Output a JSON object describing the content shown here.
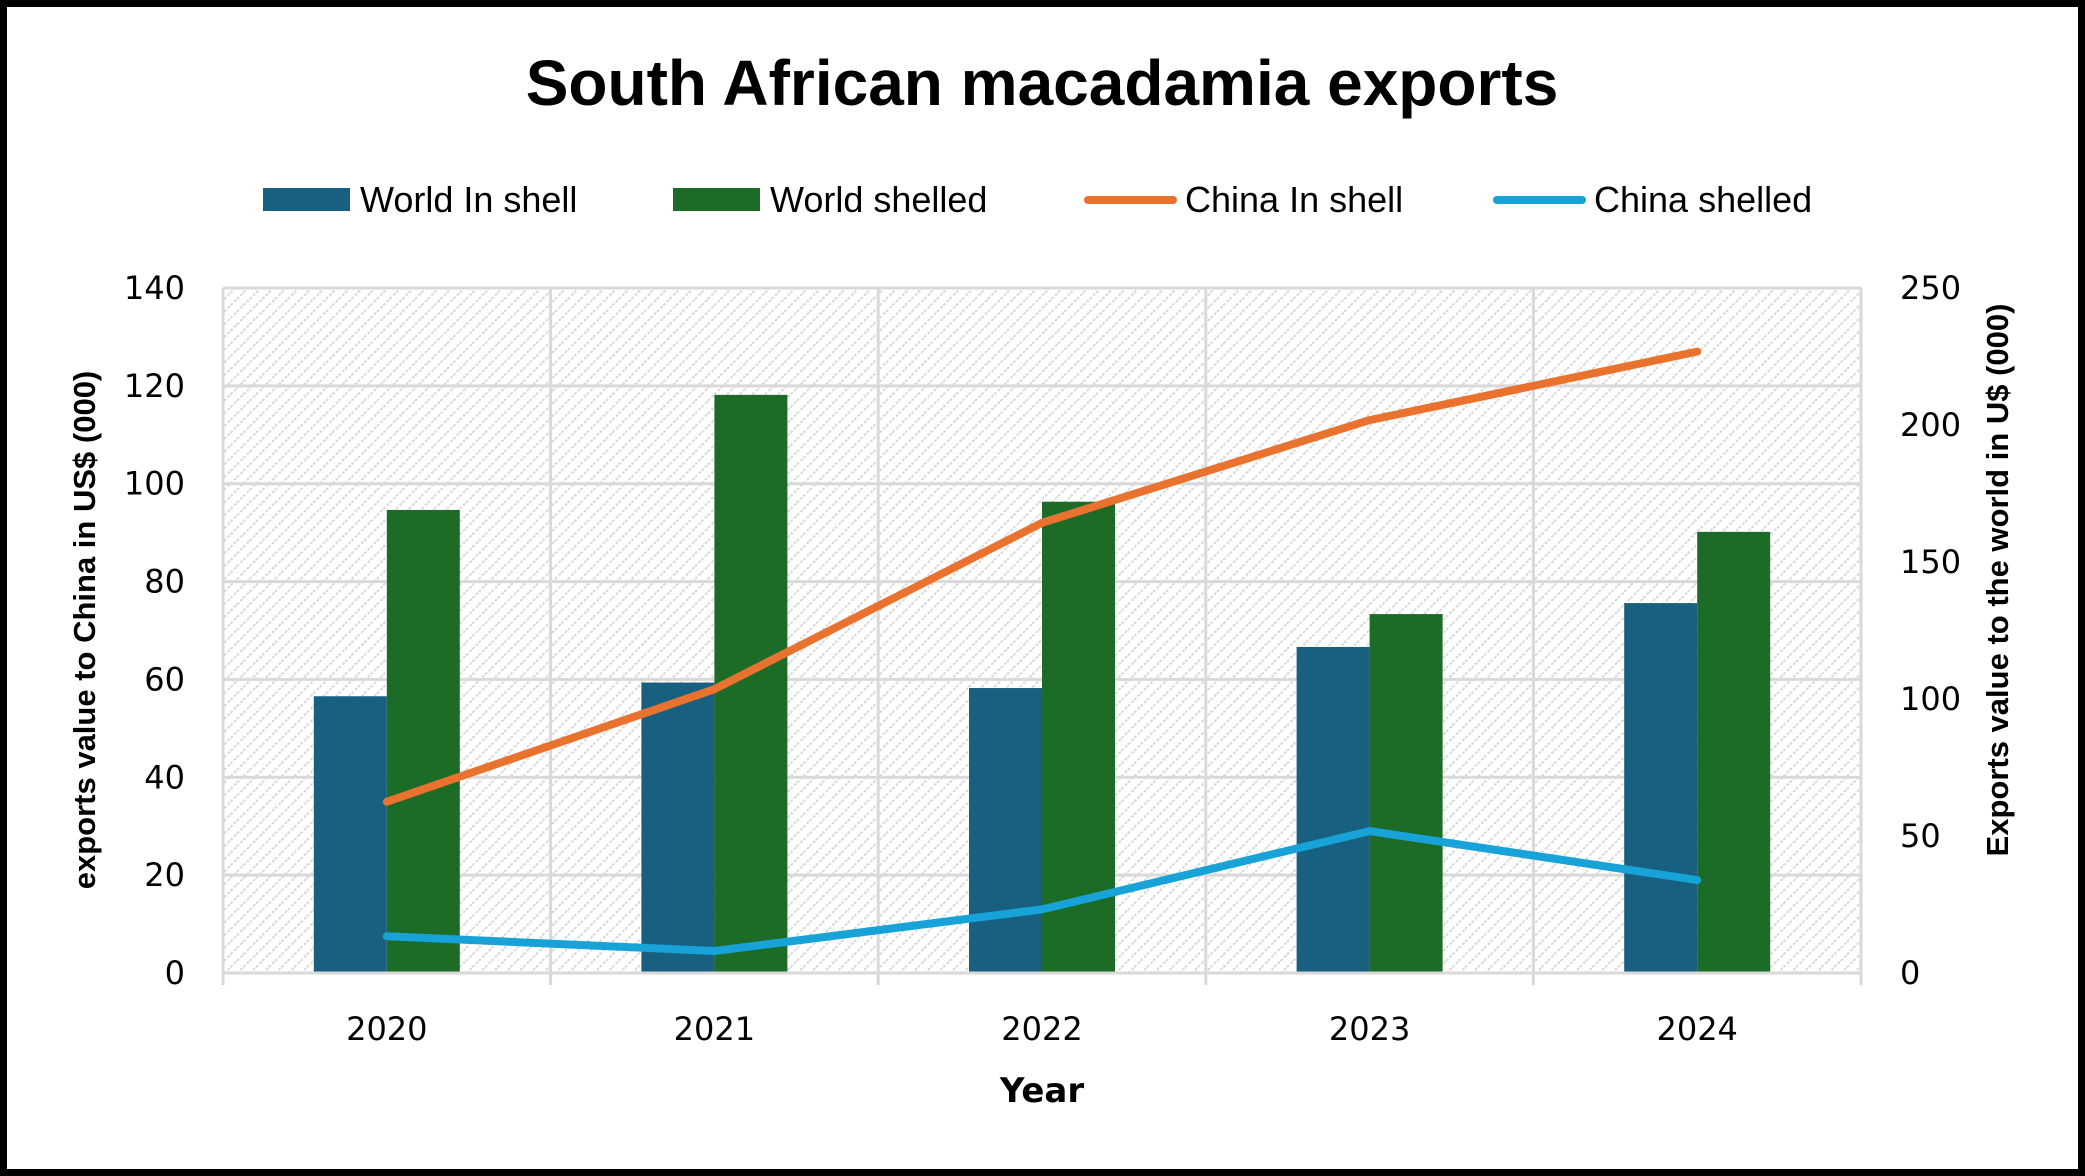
{
  "chart_data": {
    "type": "bar",
    "title": "South African macadamia exports",
    "xlabel": "Year",
    "ylabel_left": "exports value to China in US$ (000)",
    "ylabel_right": "Exports value to the world in U$ (000)",
    "categories": [
      "2020",
      "2021",
      "2022",
      "2023",
      "2024"
    ],
    "ylim_left": [
      0,
      140
    ],
    "yticks_left": [
      0,
      20,
      40,
      60,
      80,
      100,
      120,
      140
    ],
    "ylim_right": [
      0,
      250
    ],
    "yticks_right": [
      0,
      50,
      100,
      150,
      200,
      250
    ],
    "grid": true,
    "legend_position": "top",
    "series": [
      {
        "name": "World In shell",
        "kind": "bar",
        "axis": "right",
        "color": "#17607f",
        "values": [
          101,
          106,
          104,
          119,
          135
        ]
      },
      {
        "name": "World shelled",
        "kind": "bar",
        "axis": "right",
        "color": "#1c6b27",
        "values": [
          169,
          211,
          172,
          131,
          161
        ]
      },
      {
        "name": "China In shell",
        "kind": "line",
        "axis": "left",
        "color": "#e9722f",
        "values": [
          35,
          58,
          92,
          113,
          127
        ]
      },
      {
        "name": "China shelled",
        "kind": "line",
        "axis": "left",
        "color": "#17a2d8",
        "values": [
          7.5,
          4.5,
          13,
          29,
          19
        ]
      }
    ]
  },
  "colors": {
    "gridline": "#d9d9d9",
    "plot_hatch": "#d9d9d9",
    "frame": "#000000"
  }
}
